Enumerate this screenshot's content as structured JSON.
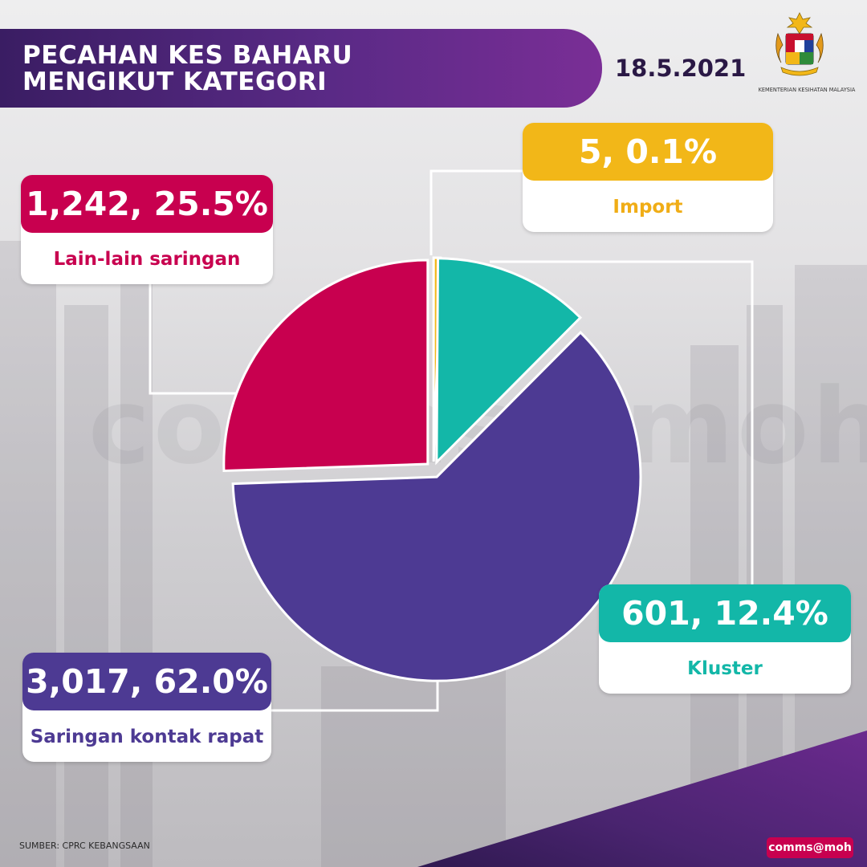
{
  "header": {
    "title_line1": "PECAHAN KES BAHARU",
    "title_line2": "MENGIKUT KATEGORI",
    "date": "18.5.2021",
    "agency": "KEMENTERIAN KESIHATAN MALAYSIA"
  },
  "watermark": "comms@moh",
  "footer": {
    "source": "SUMBER: CPRC KEBANGSAAN",
    "brand": "comms@moh"
  },
  "colors": {
    "lain_lain": "#c8004f",
    "import": "#f2b718",
    "kluster": "#13b7a8",
    "kontak_rapat": "#4d3a93",
    "header_purple": "#4a2370"
  },
  "chart_data": {
    "type": "pie",
    "title": "PECAHAN KES BAHARU MENGIKUT KATEGORI",
    "slices": [
      {
        "name": "Import",
        "value": 5,
        "percent": 0.1,
        "display": "5, 0.1%",
        "color": "#f2b718"
      },
      {
        "name": "Kluster",
        "value": 601,
        "percent": 12.4,
        "display": "601, 12.4%",
        "color": "#13b7a8"
      },
      {
        "name": "Saringan kontak rapat",
        "value": 3017,
        "percent": 62.0,
        "display": "3,017, 62.0%",
        "color": "#4d3a93"
      },
      {
        "name": "Lain-lain saringan",
        "value": 1242,
        "percent": 25.5,
        "display": "1,242, 25.5%",
        "color": "#c8004f"
      }
    ]
  }
}
